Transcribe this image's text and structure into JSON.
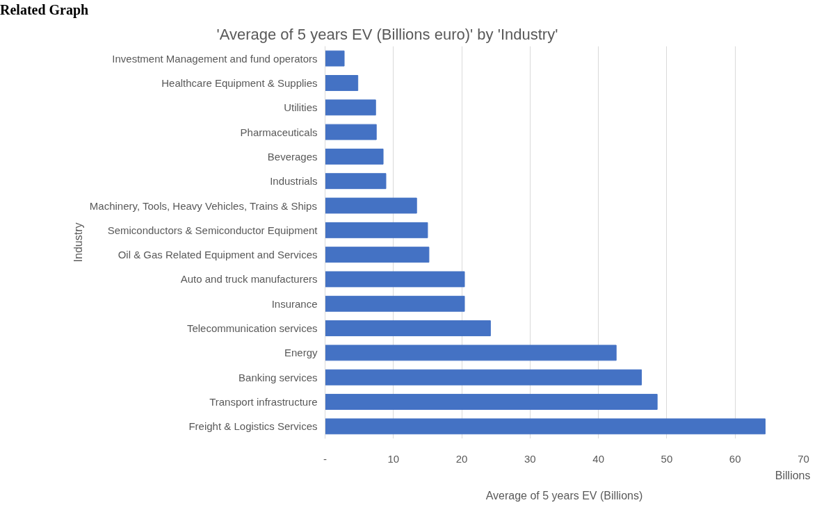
{
  "chart_data": {
    "type": "bar",
    "orientation": "horizontal",
    "title": "'Average of 5 years EV (Billions euro)' by 'Industry'",
    "xlabel": "Average of 5 years EV (Billions)",
    "ylabel": "Industry",
    "categories": [
      "Investment Management and fund operators",
      "Healthcare Equipment & Supplies",
      "Utilities",
      "Pharmaceuticals",
      "Beverages",
      "Industrials",
      "Machinery, Tools, Heavy Vehicles, Trains & Ships",
      "Semiconductors & Semiconductor Equipment",
      "Oil & Gas Related Equipment and Services",
      "Auto and truck manufacturers",
      "Insurance",
      "Telecommunication services",
      "Energy",
      "Banking services",
      "Transport infrastructure",
      "Freight & Logistics Services"
    ],
    "values": [
      2.8,
      4.8,
      7.4,
      7.5,
      8.5,
      8.9,
      13.4,
      15.0,
      15.2,
      20.4,
      20.4,
      24.2,
      42.6,
      46.3,
      48.6,
      64.4
    ],
    "color": "#4472c4",
    "xlim": [
      0,
      70
    ],
    "xticks": [
      {
        "value": 0,
        "label": "-"
      },
      10,
      20,
      30,
      40,
      50,
      60,
      70
    ],
    "grid": "x",
    "annotations": [
      "Related Graph",
      "Billions"
    ]
  }
}
